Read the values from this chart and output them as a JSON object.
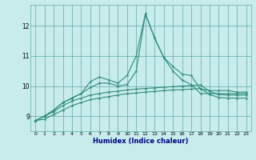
{
  "x": [
    0,
    1,
    2,
    3,
    4,
    5,
    6,
    7,
    8,
    9,
    10,
    11,
    12,
    13,
    14,
    15,
    16,
    17,
    18,
    19,
    20,
    21,
    22,
    23
  ],
  "line1": [
    8.85,
    9.0,
    9.2,
    9.45,
    9.6,
    9.75,
    10.15,
    10.3,
    10.2,
    10.1,
    10.35,
    11.0,
    12.4,
    11.6,
    10.95,
    10.65,
    10.4,
    10.35,
    9.9,
    9.85,
    9.85,
    9.85,
    9.8,
    9.8
  ],
  "line2": [
    8.85,
    9.0,
    9.2,
    9.45,
    9.6,
    9.75,
    9.95,
    10.1,
    10.1,
    10.0,
    10.05,
    10.5,
    12.4,
    11.6,
    10.95,
    10.5,
    10.2,
    10.05,
    9.75,
    9.75,
    9.75,
    9.75,
    9.75,
    9.75
  ],
  "line3": [
    8.85,
    9.0,
    9.15,
    9.35,
    9.5,
    9.6,
    9.7,
    9.75,
    9.8,
    9.83,
    9.87,
    9.9,
    9.92,
    9.94,
    9.96,
    9.98,
    10.0,
    10.02,
    10.04,
    9.82,
    9.72,
    9.7,
    9.7,
    9.7
  ],
  "line4": [
    8.85,
    8.9,
    9.05,
    9.2,
    9.35,
    9.45,
    9.55,
    9.6,
    9.65,
    9.7,
    9.75,
    9.77,
    9.8,
    9.82,
    9.85,
    9.87,
    9.88,
    9.9,
    9.92,
    9.72,
    9.62,
    9.6,
    9.6,
    9.6
  ],
  "line_color": "#2e8b7a",
  "bg_color": "#c8ecec",
  "grid_color": "#5fa8a8",
  "xlabel": "Humidex (Indice chaleur)",
  "ylim": [
    8.5,
    12.7
  ],
  "xlim": [
    -0.5,
    23.5
  ],
  "yticks": [
    9,
    10,
    11,
    12
  ],
  "xticks": [
    0,
    1,
    2,
    3,
    4,
    5,
    6,
    7,
    8,
    9,
    10,
    11,
    12,
    13,
    14,
    15,
    16,
    17,
    18,
    19,
    20,
    21,
    22,
    23
  ],
  "marker": "*",
  "markersize": 3,
  "linewidth": 0.8
}
